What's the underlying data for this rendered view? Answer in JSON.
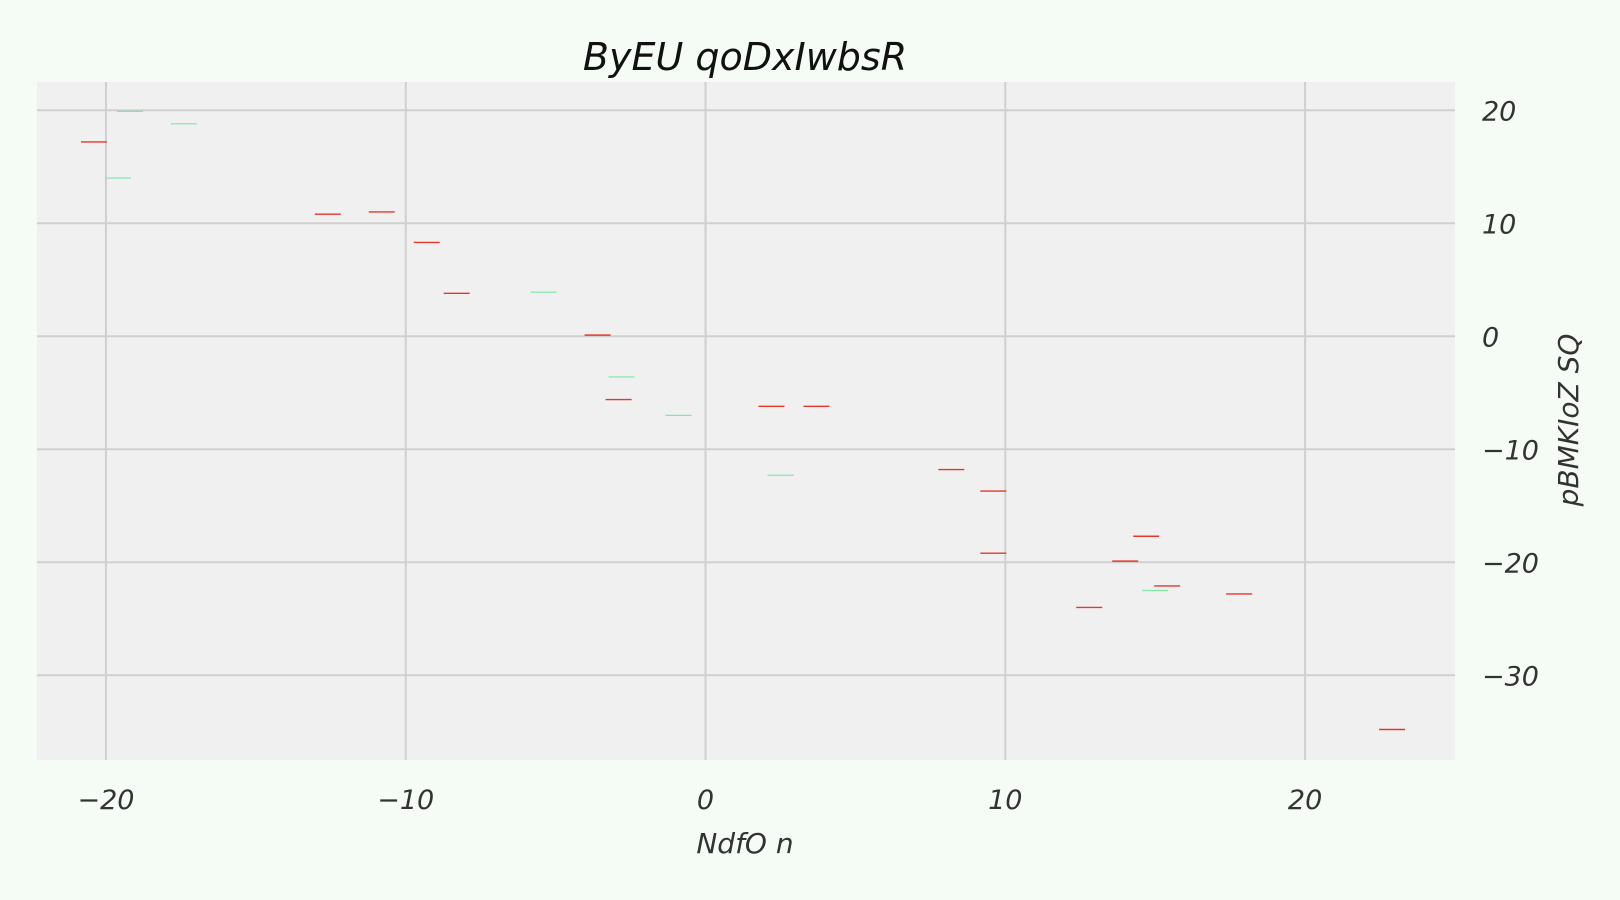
{
  "chart_data": {
    "type": "scatter",
    "marker": "horizontal-dash",
    "title": "ByEU qoDxIwbsR",
    "xlabel": "NdfO n",
    "ylabel": "pBMKIoZ SQ",
    "xlim": [
      -22.3,
      25.0
    ],
    "ylim": [
      -37.5,
      22.5
    ],
    "x_ticks": [
      -20,
      -10,
      0,
      10,
      20
    ],
    "x_tick_labels": [
      "−20",
      "−10",
      "0",
      "10",
      "20"
    ],
    "y_ticks": [
      20,
      10,
      0,
      -10,
      -20,
      -30
    ],
    "y_tick_labels": [
      "20",
      "10",
      "0",
      "−10",
      "−20",
      "−30"
    ],
    "grid": true,
    "y_axis_position": "right",
    "colors": {
      "background": "#f0f0f0",
      "page": "#f5fcf6",
      "grid": "#cfcfcf"
    },
    "series": [
      {
        "color": "#e8372a",
        "points": [
          {
            "x": -20.4,
            "y": 17.2
          },
          {
            "x": -12.6,
            "y": 10.8
          },
          {
            "x": -10.8,
            "y": 11.0
          },
          {
            "x": -9.3,
            "y": 8.3
          },
          {
            "x": -8.3,
            "y": 3.8
          },
          {
            "x": -3.6,
            "y": 0.1
          },
          {
            "x": -2.9,
            "y": -5.6
          },
          {
            "x": 2.2,
            "y": -6.2
          },
          {
            "x": 3.7,
            "y": -6.2
          },
          {
            "x": 8.2,
            "y": -11.8
          },
          {
            "x": 9.6,
            "y": -13.7
          },
          {
            "x": 9.6,
            "y": -19.2
          },
          {
            "x": 12.8,
            "y": -24.0
          },
          {
            "x": 14.0,
            "y": -19.9
          },
          {
            "x": 14.7,
            "y": -17.7
          },
          {
            "x": 15.4,
            "y": -22.1
          },
          {
            "x": 17.8,
            "y": -22.8
          },
          {
            "x": 22.9,
            "y": -34.8
          }
        ]
      },
      {
        "color": "#7ee8a6",
        "points": [
          {
            "x": -19.2,
            "y": 19.9
          },
          {
            "x": -17.4,
            "y": 18.8
          },
          {
            "x": -19.6,
            "y": 14.0
          },
          {
            "x": -5.4,
            "y": 3.9
          },
          {
            "x": -2.8,
            "y": -3.6
          },
          {
            "x": -0.9,
            "y": -7.0
          },
          {
            "x": 2.5,
            "y": -12.3
          },
          {
            "x": 15.0,
            "y": -22.5
          }
        ]
      }
    ]
  }
}
